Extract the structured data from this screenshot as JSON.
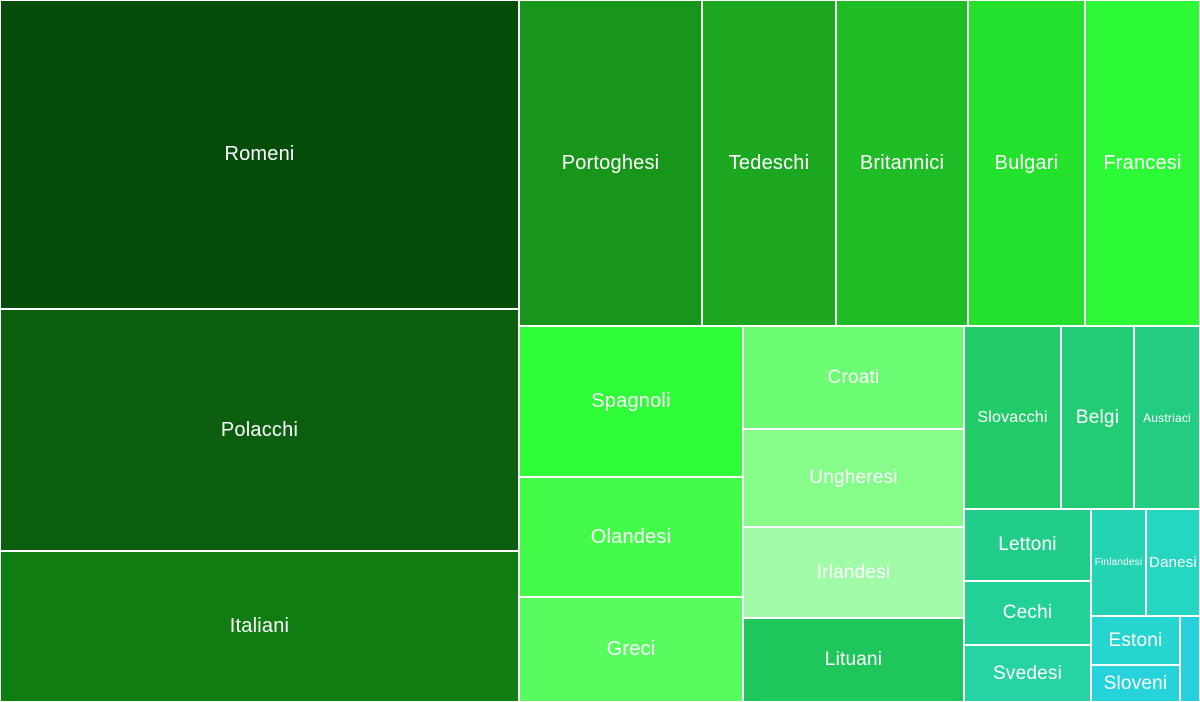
{
  "chart_data": {
    "type": "treemap",
    "title": "",
    "items": [
      {
        "label": "Romeni",
        "value": 1077,
        "color": "#064d09"
      },
      {
        "label": "Polacchi",
        "value": 813,
        "color": "#0b5f0f"
      },
      {
        "label": "Italiani",
        "value": 503,
        "color": "#107d13"
      },
      {
        "label": "Portoghesi",
        "value": 194,
        "color": "#18961c"
      },
      {
        "label": "Tedeschi",
        "value": 143,
        "color": "#1ca721"
      },
      {
        "label": "Britannici",
        "value": 138,
        "color": "#1fbd25"
      },
      {
        "label": "Bulgari",
        "value": 123,
        "color": "#24e12c"
      },
      {
        "label": "Francesi",
        "value": 119,
        "color": "#2dfa36"
      },
      {
        "label": "Spagnoli",
        "value": 104,
        "color": "#2ffd37"
      },
      {
        "label": "Olandesi",
        "value": 83,
        "color": "#42fc49"
      },
      {
        "label": "Greci",
        "value": 77,
        "color": "#58fc5e"
      },
      {
        "label": "Croati",
        "value": 71,
        "color": "#6cfc73"
      },
      {
        "label": "Ungheresi",
        "value": 66,
        "color": "#86fc8b"
      },
      {
        "label": "Irlandesi",
        "value": 62,
        "color": "#a1fba6"
      },
      {
        "label": "Lituani",
        "value": 57,
        "color": "#1fc65b"
      },
      {
        "label": "Slovacchi",
        "value": 56,
        "color": "#21cc68"
      },
      {
        "label": "Belgi",
        "value": 42,
        "color": "#21cc74"
      },
      {
        "label": "Austriaci",
        "value": 38,
        "color": "#22cc80"
      },
      {
        "label": "Lettoni",
        "value": 37,
        "color": "#22cd8b"
      },
      {
        "label": "Cechi",
        "value": 32,
        "color": "#22d197"
      },
      {
        "label": "Svedesi",
        "value": 29,
        "color": "#25d3a3"
      },
      {
        "label": "Finlandesi",
        "value": 22,
        "color": "#24d3b2"
      },
      {
        "label": "Danesi",
        "value": 20,
        "color": "#25d7c0"
      },
      {
        "label": "Estoni",
        "value": 14,
        "color": "#26d5cf"
      },
      {
        "label": "Sloveni",
        "value": 12,
        "color": "#27d3da"
      },
      {
        "label": "",
        "value": 4,
        "color": "#26d0de"
      }
    ]
  }
}
